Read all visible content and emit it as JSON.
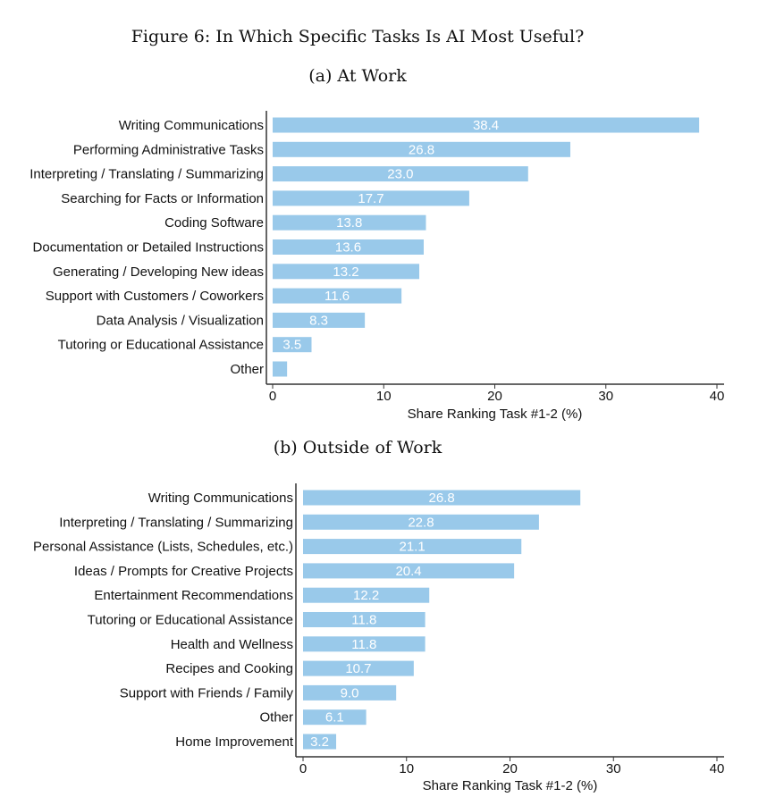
{
  "title": "Figure 6: In Which Specific Tasks Is AI Most Useful?",
  "chart_data": [
    {
      "type": "bar",
      "orientation": "horizontal",
      "subtitle": "(a) At Work",
      "categories": [
        "Writing Communications",
        "Performing Administrative Tasks",
        "Interpreting / Translating / Summarizing",
        "Searching for Facts or Information",
        "Coding Software",
        "Documentation or Detailed Instructions",
        "Generating / Developing New ideas",
        "Support with Customers / Coworkers",
        "Data Analysis / Visualization",
        "Tutoring or Educational Assistance",
        "Other"
      ],
      "values": [
        38.4,
        26.8,
        23.0,
        17.7,
        13.8,
        13.6,
        13.2,
        11.6,
        8.3,
        3.5,
        1.3
      ],
      "data_labels": [
        "38.4",
        "26.8",
        "23.0",
        "17.7",
        "13.8",
        "13.6",
        "13.2",
        "11.6",
        "8.3",
        "3.5",
        ""
      ],
      "xlabel": "Share Ranking Task #1-2 (%)",
      "xlim": [
        0,
        40
      ],
      "xticks": [
        "0",
        "10",
        "20",
        "30",
        "40"
      ],
      "grid": false,
      "bar_color": "#99c9ea"
    },
    {
      "type": "bar",
      "orientation": "horizontal",
      "subtitle": "(b) Outside of Work",
      "categories": [
        "Writing Communications",
        "Interpreting / Translating / Summarizing",
        "Personal Assistance (Lists, Schedules, etc.)",
        "Ideas / Prompts for Creative Projects",
        "Entertainment Recommendations",
        "Tutoring or Educational Assistance",
        "Health and Wellness",
        "Recipes and Cooking",
        "Support with Friends / Family",
        "Other",
        "Home Improvement"
      ],
      "values": [
        26.8,
        22.8,
        21.1,
        20.4,
        12.2,
        11.8,
        11.8,
        10.7,
        9.0,
        6.1,
        3.2
      ],
      "data_labels": [
        "26.8",
        "22.8",
        "21.1",
        "20.4",
        "12.2",
        "11.8",
        "11.8",
        "10.7",
        "9.0",
        "6.1",
        "3.2"
      ],
      "xlabel": "Share Ranking Task #1-2 (%)",
      "xlim": [
        0,
        40
      ],
      "xticks": [
        "0",
        "10",
        "20",
        "30",
        "40"
      ],
      "grid": false,
      "bar_color": "#99c9ea"
    }
  ]
}
